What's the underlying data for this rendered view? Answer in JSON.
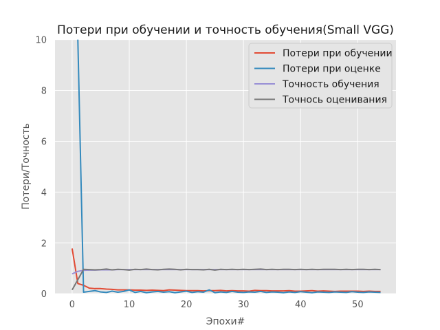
{
  "chart_data": {
    "type": "line",
    "title": "Потери при обучении и точность обучения(Small VGG)",
    "xlabel": "Эпохи#",
    "ylabel": "Потери/Точность",
    "xlim": [
      -3,
      56.7
    ],
    "ylim": [
      0,
      10
    ],
    "xticks": [
      0,
      10,
      20,
      30,
      40,
      50
    ],
    "yticks": [
      0,
      2,
      4,
      6,
      8,
      10
    ],
    "grid": true,
    "legend_position": "top-right",
    "x": [
      0,
      1,
      2,
      3,
      4,
      5,
      6,
      7,
      8,
      9,
      10,
      11,
      12,
      13,
      14,
      15,
      16,
      17,
      18,
      19,
      20,
      21,
      22,
      23,
      24,
      25,
      26,
      27,
      28,
      29,
      30,
      31,
      32,
      33,
      34,
      35,
      36,
      37,
      38,
      39,
      40,
      41,
      42,
      43,
      44,
      45,
      46,
      47,
      48,
      49,
      50,
      51,
      52,
      53,
      54
    ],
    "series": [
      {
        "name": "Потери при обучении",
        "color": "#E24A33",
        "values": [
          1.78,
          0.4,
          0.33,
          0.22,
          0.2,
          0.2,
          0.18,
          0.17,
          0.15,
          0.15,
          0.15,
          0.14,
          0.14,
          0.13,
          0.14,
          0.13,
          0.12,
          0.15,
          0.14,
          0.13,
          0.12,
          0.12,
          0.12,
          0.11,
          0.12,
          0.12,
          0.13,
          0.11,
          0.12,
          0.11,
          0.11,
          0.1,
          0.13,
          0.12,
          0.12,
          0.11,
          0.11,
          0.11,
          0.12,
          0.1,
          0.1,
          0.11,
          0.12,
          0.1,
          0.11,
          0.1,
          0.09,
          0.1,
          0.1,
          0.1,
          0.1,
          0.09,
          0.1,
          0.09,
          0.09
        ]
      },
      {
        "name": "Потери при оценке",
        "color": "#348ABD",
        "values": [
          null,
          10.0,
          0.06,
          0.09,
          0.12,
          0.07,
          0.05,
          0.1,
          0.06,
          0.09,
          0.15,
          0.05,
          0.09,
          0.04,
          0.07,
          0.09,
          0.06,
          0.08,
          0.04,
          0.07,
          0.1,
          0.05,
          0.08,
          0.06,
          0.15,
          0.04,
          0.07,
          0.05,
          0.09,
          0.06,
          0.05,
          0.07,
          0.06,
          0.09,
          0.05,
          0.07,
          0.06,
          0.04,
          0.07,
          0.05,
          0.08,
          0.06,
          0.04,
          0.07,
          0.06,
          0.05,
          0.07,
          0.06,
          0.05,
          0.08,
          0.06,
          0.05,
          0.07,
          0.06,
          0.05
        ]
      },
      {
        "name": "Точность обучения",
        "color": "#988ED5",
        "values": [
          0.78,
          0.88,
          0.92,
          0.93,
          0.93,
          0.94,
          0.94,
          0.94,
          0.95,
          0.95,
          0.95,
          0.95,
          0.95,
          0.95,
          0.95,
          0.95,
          0.95,
          0.95,
          0.95,
          0.95,
          0.95,
          0.95,
          0.95,
          0.95,
          0.95,
          0.95,
          0.95,
          0.95,
          0.95,
          0.95,
          0.95,
          0.95,
          0.95,
          0.95,
          0.95,
          0.95,
          0.95,
          0.95,
          0.95,
          0.95,
          0.95,
          0.95,
          0.95,
          0.95,
          0.95,
          0.95,
          0.95,
          0.95,
          0.95,
          0.95,
          0.95,
          0.95,
          0.95,
          0.95,
          0.95
        ]
      },
      {
        "name": "Точнось оценивания",
        "color": "#777777",
        "values": [
          0.15,
          0.55,
          0.96,
          0.95,
          0.94,
          0.95,
          0.97,
          0.94,
          0.96,
          0.95,
          0.93,
          0.96,
          0.95,
          0.97,
          0.95,
          0.94,
          0.96,
          0.97,
          0.96,
          0.94,
          0.96,
          0.95,
          0.95,
          0.94,
          0.96,
          0.93,
          0.96,
          0.95,
          0.96,
          0.95,
          0.96,
          0.95,
          0.96,
          0.97,
          0.95,
          0.96,
          0.95,
          0.96,
          0.96,
          0.95,
          0.96,
          0.95,
          0.96,
          0.95,
          0.96,
          0.96,
          0.96,
          0.95,
          0.96,
          0.95,
          0.96,
          0.96,
          0.95,
          0.96,
          0.95
        ]
      }
    ]
  }
}
